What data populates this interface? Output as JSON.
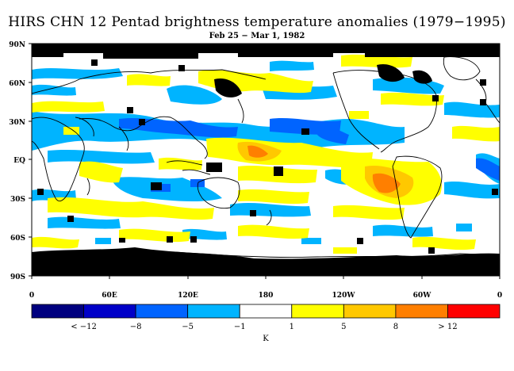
{
  "title": "HIRS CHN 12 Pentad brightness temperature anomalies (1979−1995)",
  "subtitle": "Feb 25 − Mar 1, 1982",
  "lat_labels": [
    "90N",
    "60N",
    "30N",
    "EQ",
    "30S",
    "60S",
    "90S"
  ],
  "lon_labels": [
    "0",
    "60E",
    "120E",
    "180",
    "120W",
    "60W",
    "0"
  ],
  "legend": {
    "unit": "K",
    "labels": [
      "< −12",
      "−8",
      "−5",
      "−1",
      "1",
      "5",
      "8",
      "> 12"
    ],
    "colors": [
      "#00007f",
      "#0000c8",
      "#0064ff",
      "#00b4ff",
      "#ffffff",
      "#ffff00",
      "#ffc800",
      "#ff7f00",
      "#ff0000"
    ]
  },
  "map_colors": {
    "no_data": "#000000",
    "coast": "#000000"
  }
}
